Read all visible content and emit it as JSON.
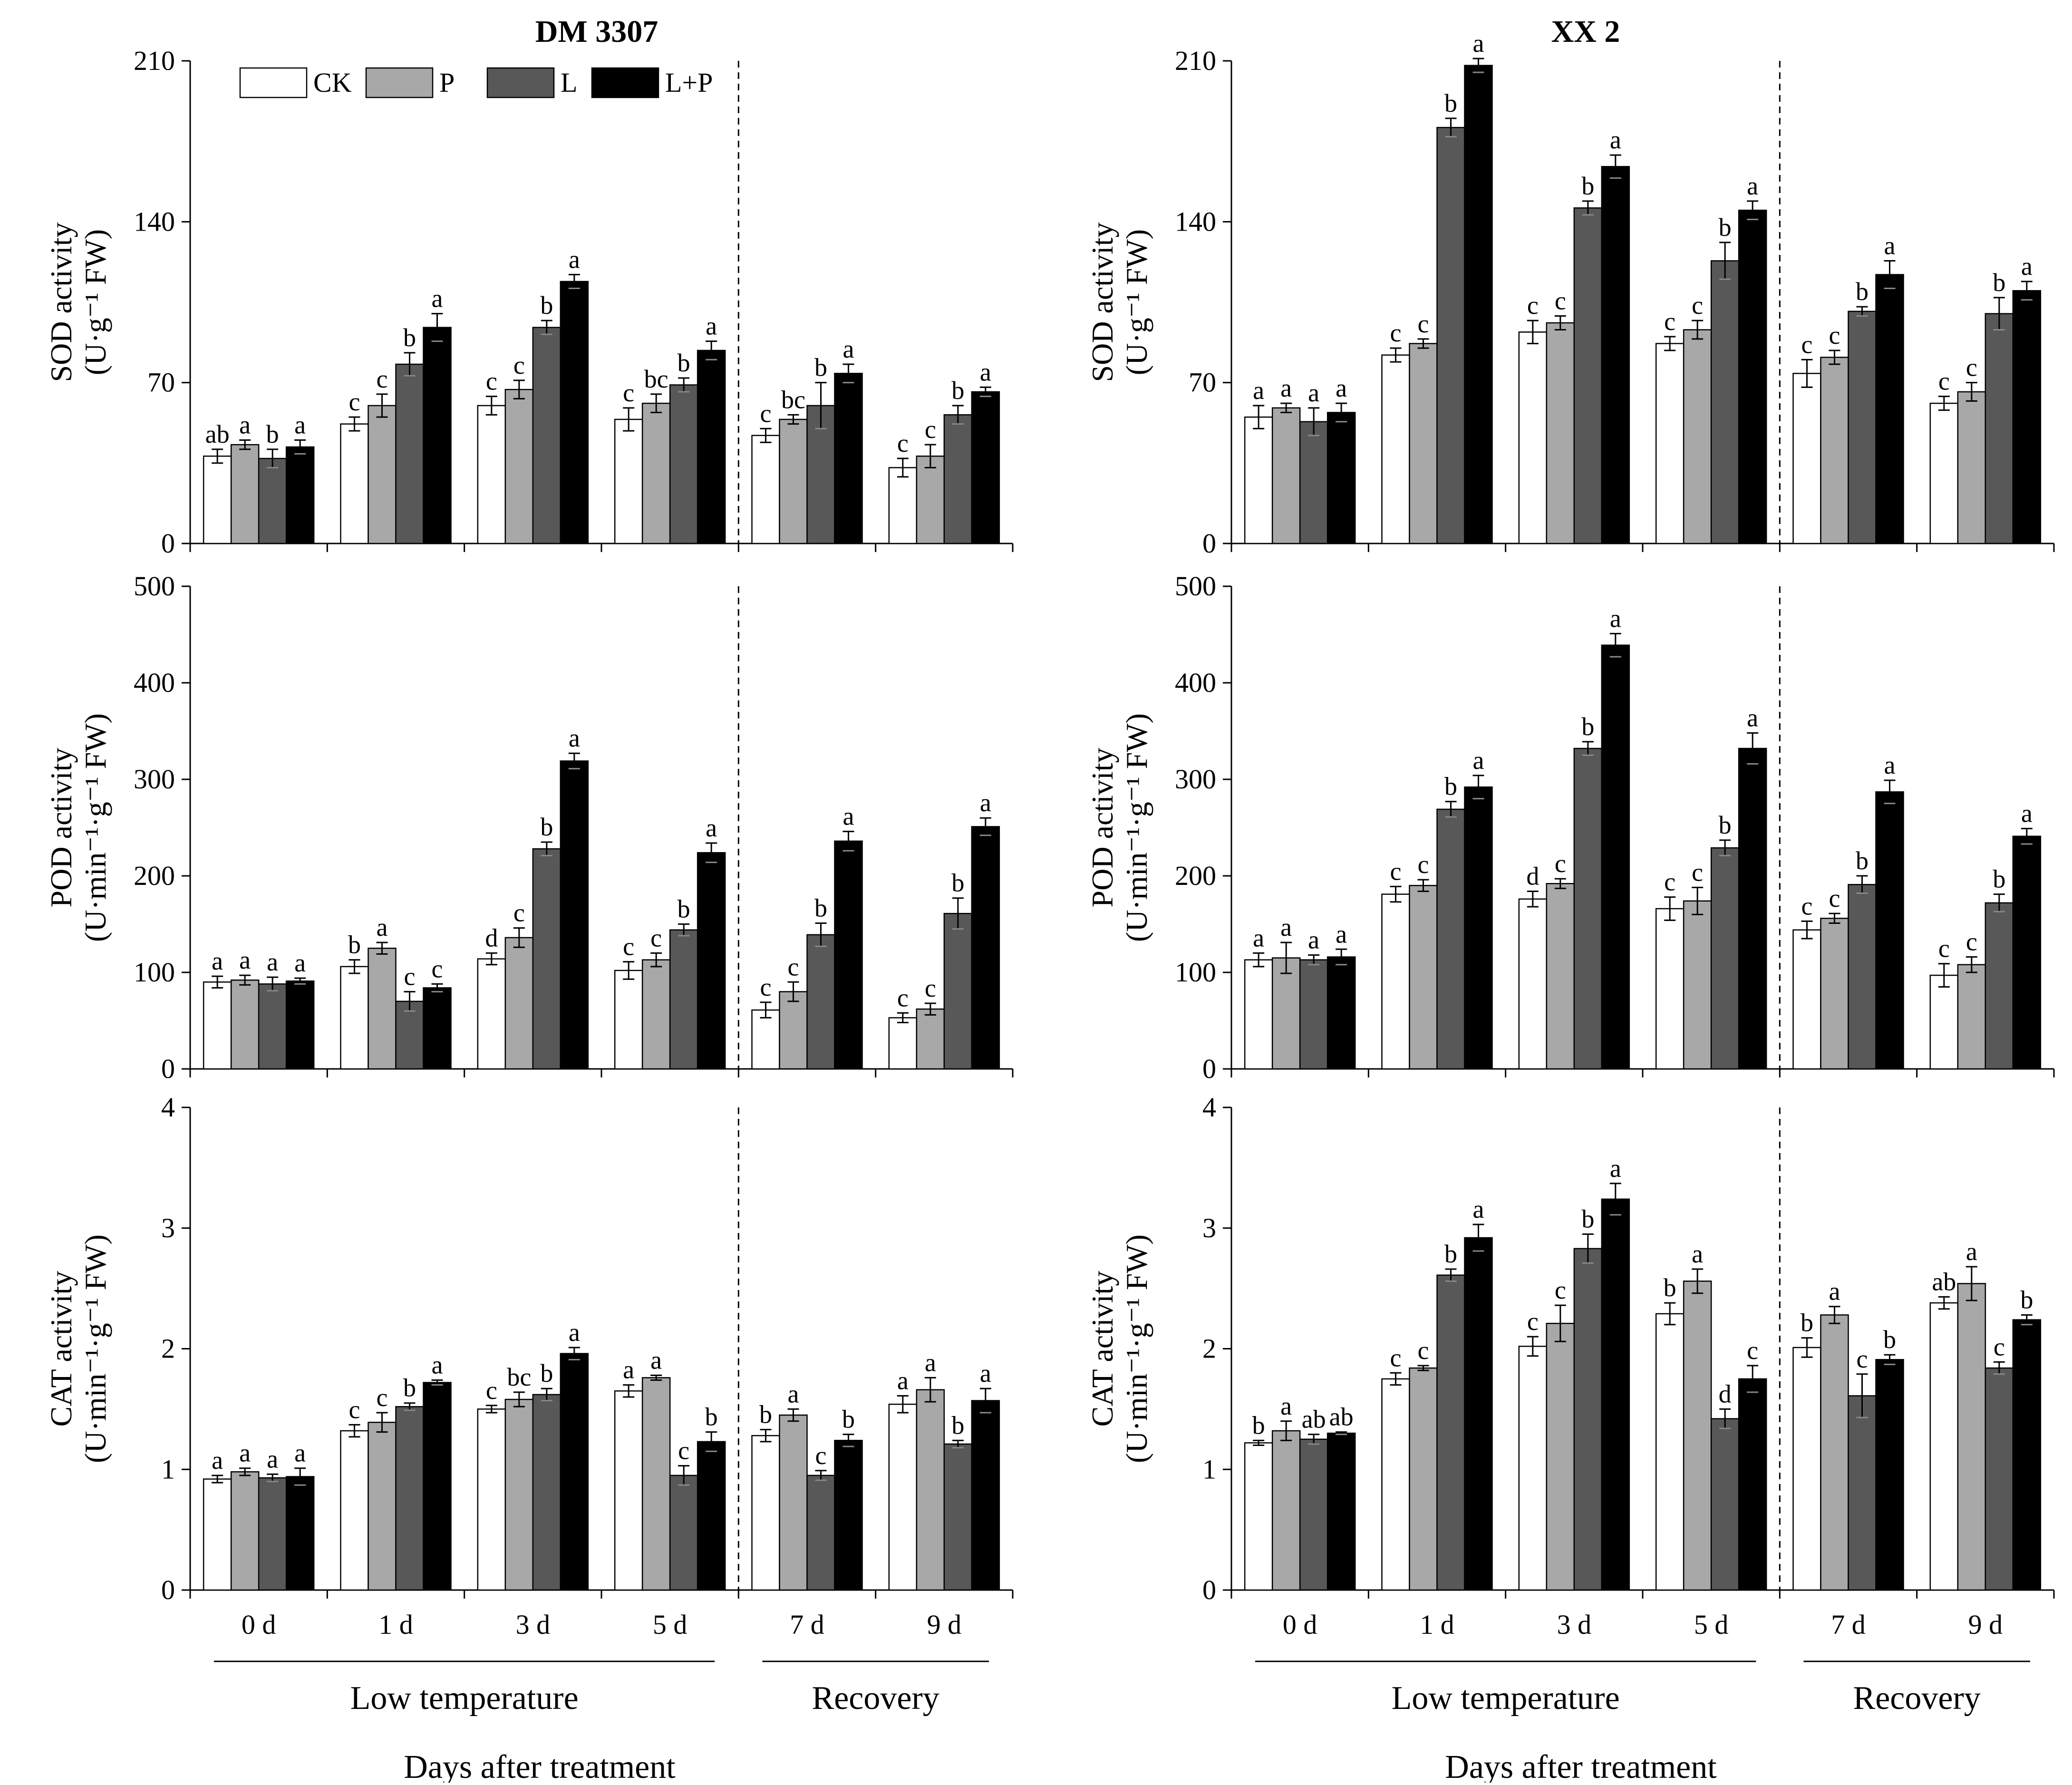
{
  "figure": {
    "categories": [
      "0 d",
      "1 d",
      "3 d",
      "5 d",
      "7 d",
      "9 d"
    ],
    "groups": [
      {
        "label": "Low temperature",
        "n": 4
      },
      {
        "label": "Recovery",
        "n": 2
      }
    ],
    "xlabel": "Days after treatment",
    "legend": [
      "CK",
      "P",
      "L",
      "L+P"
    ],
    "bar_colors": [
      "#ffffff",
      "#a8a8a8",
      "#585858",
      "#000000"
    ],
    "axis_color": "#000000"
  },
  "chart_data": [
    {
      "type": "bar",
      "panel": "DM 3307",
      "title": "DM 3307",
      "variable": "SOD",
      "ylabel_main": "SOD activity",
      "ylabel_unit": "(U·g⁻¹ FW)",
      "ylim": [
        0,
        210
      ],
      "yticks": [
        "0",
        "70",
        "140",
        "210"
      ],
      "categories": [
        "0 d",
        "1 d",
        "3 d",
        "5 d",
        "7 d",
        "9 d"
      ],
      "series": [
        {
          "name": "CK",
          "values": [
            38,
            52,
            60,
            54,
            47,
            33
          ],
          "errors": [
            3,
            3,
            4,
            5,
            3,
            4
          ],
          "letters": [
            "ab",
            "c",
            "c",
            "c",
            "c",
            "c"
          ]
        },
        {
          "name": "P",
          "values": [
            43,
            60,
            67,
            61,
            54,
            38
          ],
          "errors": [
            2,
            5,
            4,
            4,
            2,
            5
          ],
          "letters": [
            "a",
            "c",
            "c",
            "bc",
            "bc",
            "c"
          ]
        },
        {
          "name": "L",
          "values": [
            37,
            78,
            94,
            69,
            60,
            56
          ],
          "errors": [
            4,
            5,
            3,
            3,
            10,
            4
          ],
          "letters": [
            "b",
            "b",
            "b",
            "b",
            "b",
            "b"
          ]
        },
        {
          "name": "L+P",
          "values": [
            42,
            94,
            114,
            84,
            74,
            66
          ],
          "errors": [
            3,
            6,
            3,
            4,
            4,
            2
          ],
          "letters": [
            "a",
            "a",
            "a",
            "a",
            "a",
            "a"
          ]
        }
      ]
    },
    {
      "type": "bar",
      "panel": "XX 2",
      "title": "XX 2",
      "variable": "SOD",
      "ylabel_main": "SOD activity",
      "ylabel_unit": "(U·g⁻¹ FW)",
      "ylim": [
        0,
        210
      ],
      "yticks": [
        "0",
        "70",
        "140",
        "210"
      ],
      "categories": [
        "0 d",
        "1 d",
        "3 d",
        "5 d",
        "7 d",
        "9 d"
      ],
      "series": [
        {
          "name": "CK",
          "values": [
            55,
            82,
            92,
            87,
            74,
            61
          ],
          "errors": [
            5,
            3,
            5,
            3,
            6,
            3
          ],
          "letters": [
            "a",
            "c",
            "c",
            "c",
            "c",
            "c"
          ]
        },
        {
          "name": "P",
          "values": [
            59,
            87,
            96,
            93,
            81,
            66
          ],
          "errors": [
            2,
            2,
            3,
            4,
            3,
            4
          ],
          "letters": [
            "a",
            "c",
            "c",
            "c",
            "c",
            "c"
          ]
        },
        {
          "name": "L",
          "values": [
            53,
            181,
            146,
            123,
            101,
            100
          ],
          "errors": [
            6,
            4,
            3,
            8,
            2,
            7
          ],
          "letters": [
            "a",
            "b",
            "b",
            "b",
            "b",
            "b"
          ]
        },
        {
          "name": "L+P",
          "values": [
            57,
            208,
            164,
            145,
            117,
            110
          ],
          "errors": [
            4,
            3,
            5,
            4,
            6,
            4
          ],
          "letters": [
            "a",
            "a",
            "a",
            "a",
            "a",
            "a"
          ]
        }
      ]
    },
    {
      "type": "bar",
      "panel": "DM 3307",
      "variable": "POD",
      "ylabel_main": "POD activity",
      "ylabel_unit": "(U·min⁻¹·g⁻¹ FW)",
      "ylim": [
        0,
        500
      ],
      "yticks": [
        "0",
        "100",
        "200",
        "300",
        "400",
        "500"
      ],
      "categories": [
        "0 d",
        "1 d",
        "3 d",
        "5 d",
        "7 d",
        "9 d"
      ],
      "series": [
        {
          "name": "CK",
          "values": [
            90,
            106,
            114,
            102,
            61,
            53
          ],
          "errors": [
            6,
            7,
            6,
            9,
            8,
            5
          ],
          "letters": [
            "a",
            "b",
            "d",
            "c",
            "c",
            "c"
          ]
        },
        {
          "name": "P",
          "values": [
            92,
            125,
            136,
            113,
            80,
            62
          ],
          "errors": [
            5,
            6,
            10,
            7,
            10,
            6
          ],
          "letters": [
            "a",
            "a",
            "c",
            "c",
            "c",
            "c"
          ]
        },
        {
          "name": "L",
          "values": [
            88,
            70,
            228,
            144,
            139,
            161
          ],
          "errors": [
            7,
            10,
            7,
            6,
            12,
            16
          ],
          "letters": [
            "a",
            "c",
            "b",
            "b",
            "b",
            "b"
          ]
        },
        {
          "name": "L+P",
          "values": [
            91,
            84,
            319,
            224,
            236,
            251
          ],
          "errors": [
            3,
            4,
            8,
            10,
            10,
            9
          ],
          "letters": [
            "a",
            "c",
            "a",
            "a",
            "a",
            "a"
          ]
        }
      ]
    },
    {
      "type": "bar",
      "panel": "XX 2",
      "variable": "POD",
      "ylabel_main": "POD activity",
      "ylabel_unit": "(U·min⁻¹·g⁻¹ FW)",
      "ylim": [
        0,
        500
      ],
      "yticks": [
        "0",
        "100",
        "200",
        "300",
        "400",
        "500"
      ],
      "categories": [
        "0 d",
        "1 d",
        "3 d",
        "5 d",
        "7 d",
        "9 d"
      ],
      "series": [
        {
          "name": "CK",
          "values": [
            113,
            181,
            176,
            166,
            144,
            97
          ],
          "errors": [
            7,
            8,
            8,
            12,
            9,
            12
          ],
          "letters": [
            "a",
            "c",
            "d",
            "c",
            "c",
            "c"
          ]
        },
        {
          "name": "P",
          "values": [
            115,
            190,
            192,
            174,
            156,
            108
          ],
          "errors": [
            16,
            6,
            5,
            14,
            5,
            8
          ],
          "letters": [
            "a",
            "c",
            "c",
            "c",
            "c",
            "c"
          ]
        },
        {
          "name": "L",
          "values": [
            113,
            269,
            332,
            229,
            191,
            172
          ],
          "errors": [
            5,
            8,
            7,
            8,
            9,
            9
          ],
          "letters": [
            "a",
            "b",
            "b",
            "b",
            "b",
            "b"
          ]
        },
        {
          "name": "L+P",
          "values": [
            116,
            292,
            439,
            332,
            287,
            241
          ],
          "errors": [
            8,
            12,
            12,
            16,
            12,
            8
          ],
          "letters": [
            "a",
            "a",
            "a",
            "a",
            "a",
            "a"
          ]
        }
      ]
    },
    {
      "type": "bar",
      "panel": "DM 3307",
      "variable": "CAT",
      "ylabel_main": "CAT activity",
      "ylabel_unit": "(U·min⁻¹·g⁻¹ FW)",
      "ylim": [
        0,
        4
      ],
      "yticks": [
        "0",
        "1",
        "2",
        "3",
        "4"
      ],
      "categories": [
        "0 d",
        "1 d",
        "3 d",
        "5 d",
        "7 d",
        "9 d"
      ],
      "series": [
        {
          "name": "CK",
          "values": [
            0.92,
            1.32,
            1.5,
            1.65,
            1.28,
            1.54
          ],
          "errors": [
            0.03,
            0.05,
            0.03,
            0.05,
            0.05,
            0.07
          ],
          "letters": [
            "a",
            "c",
            "c",
            "a",
            "b",
            "a"
          ]
        },
        {
          "name": "P",
          "values": [
            0.98,
            1.39,
            1.58,
            1.76,
            1.45,
            1.66
          ],
          "errors": [
            0.03,
            0.08,
            0.06,
            0.02,
            0.05,
            0.1
          ],
          "letters": [
            "a",
            "c",
            "bc",
            "a",
            "a",
            "a"
          ]
        },
        {
          "name": "L",
          "values": [
            0.93,
            1.52,
            1.62,
            0.95,
            0.95,
            1.21
          ],
          "errors": [
            0.03,
            0.03,
            0.05,
            0.08,
            0.04,
            0.03
          ],
          "letters": [
            "a",
            "b",
            "b",
            "c",
            "c",
            "b"
          ]
        },
        {
          "name": "L+P",
          "values": [
            0.94,
            1.72,
            1.96,
            1.23,
            1.24,
            1.57
          ],
          "errors": [
            0.07,
            0.02,
            0.05,
            0.08,
            0.05,
            0.1
          ],
          "letters": [
            "a",
            "a",
            "a",
            "b",
            "b",
            "a"
          ]
        }
      ]
    },
    {
      "type": "bar",
      "panel": "XX 2",
      "variable": "CAT",
      "ylabel_main": "CAT activity",
      "ylabel_unit": "(U·min⁻¹·g⁻¹ FW)",
      "ylim": [
        0,
        4
      ],
      "yticks": [
        "0",
        "1",
        "2",
        "3",
        "4"
      ],
      "categories": [
        "0 d",
        "1 d",
        "3 d",
        "5 d",
        "7 d",
        "9 d"
      ],
      "series": [
        {
          "name": "CK",
          "values": [
            1.22,
            1.75,
            2.02,
            2.29,
            2.01,
            2.38
          ],
          "errors": [
            0.02,
            0.05,
            0.08,
            0.09,
            0.08,
            0.05
          ],
          "letters": [
            "b",
            "c",
            "c",
            "b",
            "b",
            "ab"
          ]
        },
        {
          "name": "P",
          "values": [
            1.32,
            1.84,
            2.21,
            2.56,
            2.28,
            2.54
          ],
          "errors": [
            0.08,
            0.02,
            0.15,
            0.1,
            0.07,
            0.14
          ],
          "letters": [
            "a",
            "c",
            "c",
            "a",
            "a",
            "a"
          ]
        },
        {
          "name": "L",
          "values": [
            1.25,
            2.61,
            2.83,
            1.42,
            1.61,
            1.84
          ],
          "errors": [
            0.04,
            0.05,
            0.12,
            0.08,
            0.18,
            0.05
          ],
          "letters": [
            "ab",
            "b",
            "b",
            "d",
            "c",
            "c"
          ]
        },
        {
          "name": "L+P",
          "values": [
            1.3,
            2.92,
            3.24,
            1.75,
            1.91,
            2.24
          ],
          "errors": [
            0.01,
            0.11,
            0.13,
            0.11,
            0.04,
            0.04
          ],
          "letters": [
            "ab",
            "a",
            "a",
            "c",
            "b",
            "b"
          ]
        }
      ]
    }
  ]
}
